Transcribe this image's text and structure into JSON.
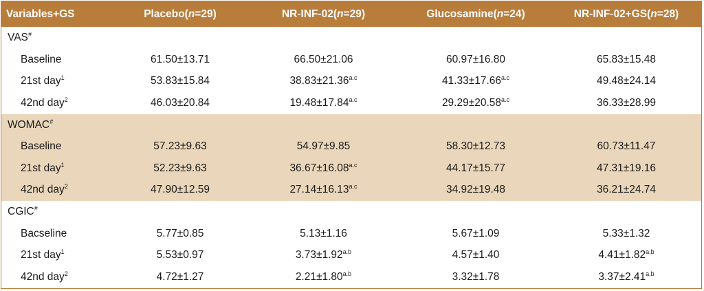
{
  "headers": [
    "Variables+GS",
    "Placebo(",
    "n",
    "=29)",
    "NR-INF-02(",
    "n",
    "=29)",
    "Glucosamine(",
    "n",
    "=24)",
    "NR-INF-02+GS(",
    "n",
    "=28)"
  ],
  "groups": [
    {
      "name": "VAS",
      "mark": "#",
      "shaded": false,
      "rows": [
        {
          "label": "Baseline",
          "sup": "",
          "cells": [
            {
              "v": "61.50±13.71",
              "s": ""
            },
            {
              "v": "66.50±21.06",
              "s": ""
            },
            {
              "v": "60.97±16.80",
              "s": ""
            },
            {
              "v": "65.83±15.48",
              "s": ""
            }
          ]
        },
        {
          "label": "21st day",
          "sup": "1",
          "cells": [
            {
              "v": "53.83±15.84",
              "s": ""
            },
            {
              "v": "38.83±21.36",
              "s": "a.c"
            },
            {
              "v": "41.33±17.66",
              "s": "a.c"
            },
            {
              "v": "49.48±24.14",
              "s": ""
            }
          ]
        },
        {
          "label": "42nd day",
          "sup": "2",
          "cells": [
            {
              "v": "46.03±20.84",
              "s": ""
            },
            {
              "v": "19.48±17.84",
              "s": "a.c"
            },
            {
              "v": "29.29±20.58",
              "s": "a.c"
            },
            {
              "v": "36.33±28.99",
              "s": ""
            }
          ]
        }
      ]
    },
    {
      "name": "WOMAC",
      "mark": "#",
      "shaded": true,
      "rows": [
        {
          "label": "Baseline",
          "sup": "",
          "cells": [
            {
              "v": "57.23±9.63",
              "s": ""
            },
            {
              "v": "54.97±9.85",
              "s": ""
            },
            {
              "v": "58.30±12.73",
              "s": ""
            },
            {
              "v": "60.73±11.47",
              "s": ""
            }
          ]
        },
        {
          "label": "21st day",
          "sup": "1",
          "cells": [
            {
              "v": "52.23±9.63",
              "s": ""
            },
            {
              "v": "36.67±16.08",
              "s": "a.c"
            },
            {
              "v": "44.17±15.77",
              "s": ""
            },
            {
              "v": "47.31±19.16",
              "s": ""
            }
          ]
        },
        {
          "label": "42nd day",
          "sup": "2",
          "cells": [
            {
              "v": "47.90±12.59",
              "s": ""
            },
            {
              "v": "27.14±16.13",
              "s": "a.c"
            },
            {
              "v": "34.92±19.48",
              "s": ""
            },
            {
              "v": "36.21±24.74",
              "s": ""
            }
          ]
        }
      ]
    },
    {
      "name": "CGIC",
      "mark": "#",
      "shaded": false,
      "rows": [
        {
          "label": "Bacseline",
          "sup": "",
          "cells": [
            {
              "v": "5.77±0.85",
              "s": ""
            },
            {
              "v": "5.13±1.16",
              "s": ""
            },
            {
              "v": "5.67±1.09",
              "s": ""
            },
            {
              "v": "5.33±1.32",
              "s": ""
            }
          ]
        },
        {
          "label": "21st day",
          "sup": "1",
          "cells": [
            {
              "v": "5.53±0.97",
              "s": ""
            },
            {
              "v": "3.73±1.92",
              "s": "a.b"
            },
            {
              "v": "4.57±1.40",
              "s": ""
            },
            {
              "v": "4.41±1.82",
              "s": "a.b"
            }
          ]
        },
        {
          "label": "42nd day",
          "sup": "2",
          "cells": [
            {
              "v": "4.72±1.27",
              "s": ""
            },
            {
              "v": "2.21±1.80",
              "s": "a.b"
            },
            {
              "v": "3.32±1.78",
              "s": ""
            },
            {
              "v": "3.37±2.41",
              "s": "a.b"
            }
          ]
        }
      ]
    }
  ]
}
